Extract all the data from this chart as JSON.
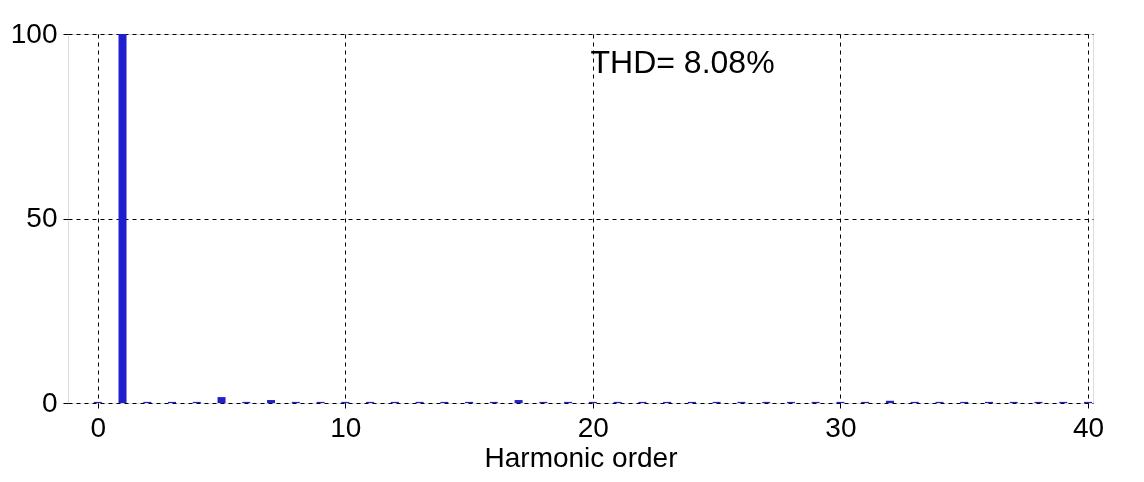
{
  "chart_data": {
    "type": "bar",
    "xlabel": "Harmonic order",
    "x": [
      0,
      1,
      2,
      3,
      4,
      5,
      6,
      7,
      8,
      9,
      10,
      11,
      12,
      13,
      14,
      15,
      16,
      17,
      18,
      19,
      20,
      21,
      22,
      23,
      24,
      25,
      26,
      27,
      28,
      29,
      30,
      31,
      32,
      33,
      34,
      35,
      36,
      37,
      38,
      39,
      40
    ],
    "values": [
      0.3,
      100,
      0.3,
      0.3,
      0.3,
      1.6,
      0.3,
      0.8,
      0.3,
      0.3,
      0.3,
      0.3,
      0.3,
      0.3,
      0.3,
      0.3,
      0.3,
      0.8,
      0.3,
      0.3,
      0.3,
      0.3,
      0.3,
      0.3,
      0.3,
      0.3,
      0.3,
      0.3,
      0.3,
      0.3,
      0.3,
      0.3,
      0.6,
      0.3,
      0.3,
      0.3,
      0.3,
      0.3,
      0.3,
      0.3,
      0.3
    ],
    "color": "#1f1fd0",
    "xlim": [
      -1,
      40
    ],
    "xticks": [
      0,
      10,
      20,
      30,
      40
    ],
    "ylim": [
      0,
      100
    ],
    "yticks": [
      0,
      50,
      100
    ],
    "grid": true,
    "annotations": [
      "THD= 8.08%"
    ]
  }
}
